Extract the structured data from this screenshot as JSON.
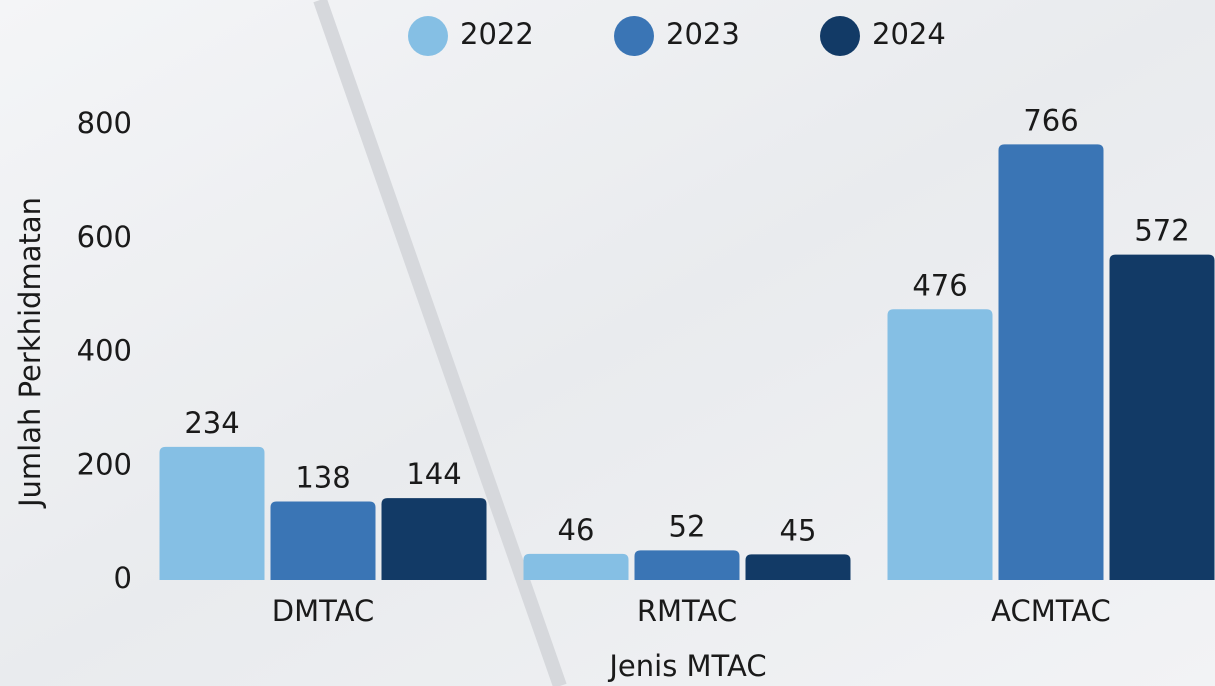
{
  "chart_data": {
    "type": "bar",
    "x_label": "Jenis MTAC",
    "y_label": "Jumlah Perkhidmatan",
    "categories": [
      "DMTAC",
      "RMTAC",
      "ACMTAC"
    ],
    "series": [
      {
        "name": "2022",
        "color": "#85bfe4",
        "values": [
          234,
          46,
          476
        ]
      },
      {
        "name": "2023",
        "color": "#3a75b5",
        "values": [
          138,
          52,
          766
        ]
      },
      {
        "name": "2024",
        "color": "#123a66",
        "values": [
          144,
          45,
          572
        ]
      }
    ],
    "ylim": [
      0,
      800
    ],
    "yticks": [
      0,
      200,
      400,
      600,
      800
    ],
    "legend": "top"
  }
}
